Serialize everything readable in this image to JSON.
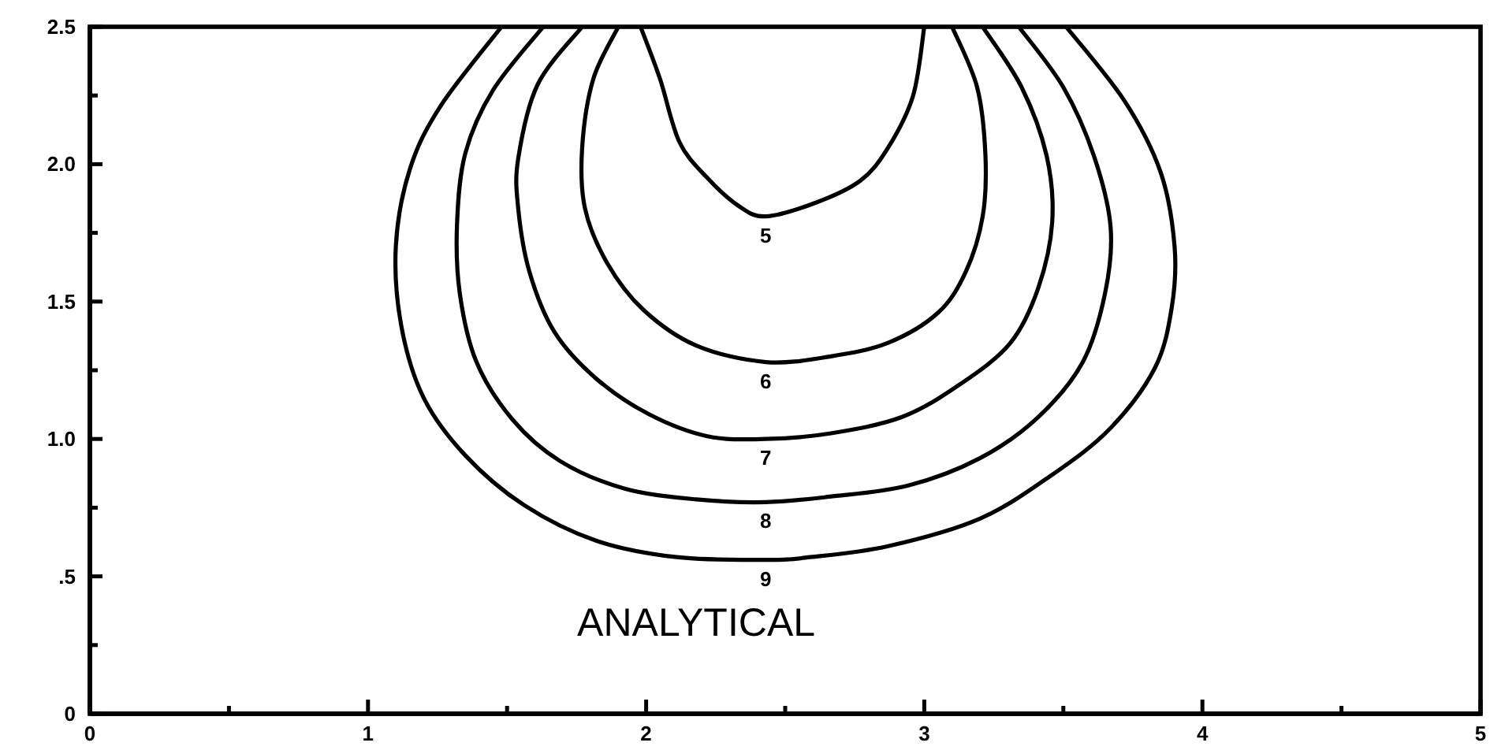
{
  "chart_data": {
    "type": "line",
    "annotations": [
      "ANALYTICAL"
    ],
    "series": [
      {
        "name": "5",
        "color": "#000000",
        "x": [
          1.98,
          2.05,
          2.12,
          2.22,
          2.33,
          2.43,
          2.61,
          2.77,
          2.87,
          2.96,
          3.0
        ],
        "values": [
          2.5,
          2.31,
          2.08,
          1.95,
          1.85,
          1.81,
          1.86,
          1.94,
          2.06,
          2.25,
          2.5
        ]
      },
      {
        "name": "6",
        "color": "#000000",
        "x": [
          1.9,
          1.81,
          1.77,
          1.78,
          1.86,
          1.99,
          2.18,
          2.43,
          2.66,
          2.87,
          3.05,
          3.15,
          3.21,
          3.22,
          3.19,
          3.1
        ],
        "values": [
          2.5,
          2.31,
          2.06,
          1.84,
          1.64,
          1.47,
          1.34,
          1.28,
          1.3,
          1.35,
          1.46,
          1.61,
          1.81,
          2.03,
          2.28,
          2.5
        ]
      },
      {
        "name": "7",
        "color": "#000000",
        "x": [
          1.77,
          1.61,
          1.54,
          1.54,
          1.58,
          1.67,
          1.82,
          2.01,
          2.22,
          2.43,
          2.66,
          2.92,
          3.13,
          3.31,
          3.41,
          3.46,
          3.44,
          3.35,
          3.21
        ],
        "values": [
          2.5,
          2.29,
          2.02,
          1.84,
          1.61,
          1.39,
          1.22,
          1.09,
          1.01,
          1.0,
          1.02,
          1.08,
          1.2,
          1.35,
          1.55,
          1.79,
          2.03,
          2.28,
          2.5
        ]
      },
      {
        "name": "8",
        "color": "#000000",
        "x": [
          1.63,
          1.45,
          1.35,
          1.32,
          1.33,
          1.39,
          1.52,
          1.69,
          1.92,
          2.18,
          2.43,
          2.66,
          2.94,
          3.2,
          3.41,
          3.57,
          3.65,
          3.67,
          3.61,
          3.5,
          3.34
        ],
        "values": [
          2.5,
          2.27,
          2.04,
          1.78,
          1.53,
          1.28,
          1.07,
          0.92,
          0.82,
          0.78,
          0.77,
          0.79,
          0.83,
          0.93,
          1.08,
          1.28,
          1.53,
          1.77,
          2.03,
          2.28,
          2.5
        ]
      },
      {
        "name": "9",
        "color": "#000000",
        "x": [
          1.48,
          1.26,
          1.15,
          1.1,
          1.12,
          1.2,
          1.35,
          1.56,
          1.82,
          2.11,
          2.43,
          2.59,
          2.87,
          3.2,
          3.46,
          3.67,
          3.83,
          3.89,
          3.9,
          3.85,
          3.72,
          3.51
        ],
        "values": [
          2.5,
          2.21,
          1.98,
          1.7,
          1.41,
          1.15,
          0.94,
          0.76,
          0.63,
          0.57,
          0.56,
          0.57,
          0.61,
          0.71,
          0.87,
          1.04,
          1.26,
          1.48,
          1.7,
          1.97,
          2.23,
          2.5
        ]
      }
    ],
    "xlim": [
      0,
      5
    ],
    "xticks": [
      0,
      {
        "value": 0.5,
        "label": null
      },
      1,
      {
        "value": 1.5,
        "label": null
      },
      2,
      {
        "value": 2.5,
        "label": null
      },
      3,
      {
        "value": 3.5,
        "label": null
      },
      4,
      {
        "value": 4.5,
        "label": null
      },
      5
    ],
    "ylim": [
      0,
      2.5
    ],
    "yticks": [
      0,
      {
        "value": 0.25,
        "label": null
      },
      {
        "value": 0.5,
        "label": ".5"
      },
      {
        "value": 0.75,
        "label": null
      },
      {
        "value": 1,
        "label": "1.0"
      },
      {
        "value": 1.25,
        "label": null
      },
      1.5,
      {
        "value": 1.75,
        "label": null
      },
      {
        "value": 2,
        "label": "2.0"
      },
      {
        "value": 2.25,
        "label": null
      },
      2.5
    ]
  }
}
